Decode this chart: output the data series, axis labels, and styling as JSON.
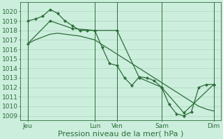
{
  "bg_color": "#cceedd",
  "grid_color": "#aaccbb",
  "line_color": "#2d6e3a",
  "marker_color": "#2d6e3a",
  "xlabel": "Pression niveau de la mer( hPa )",
  "xlabel_fontsize": 8,
  "tick_fontsize": 6.5,
  "ylim": [
    1008.5,
    1021.0
  ],
  "yticks": [
    1009,
    1010,
    1011,
    1012,
    1013,
    1014,
    1015,
    1016,
    1017,
    1018,
    1019,
    1020
  ],
  "xlim": [
    0,
    27
  ],
  "xtick_labels": [
    "Jeu",
    "Lun",
    "Ven",
    "Sam",
    "Dim"
  ],
  "xtick_positions": [
    1,
    10,
    13,
    19,
    26
  ],
  "vline_positions": [
    1,
    10,
    13,
    19,
    26
  ],
  "series1_x": [
    1,
    2,
    3,
    4,
    5,
    6,
    7,
    8,
    9,
    10,
    11,
    12,
    13,
    14,
    15,
    16,
    17,
    18,
    19,
    20,
    21,
    22,
    23,
    24,
    25,
    26
  ],
  "series1_y": [
    1019.0,
    1019.2,
    1019.5,
    1020.2,
    1019.8,
    1019.0,
    1018.5,
    1018.0,
    1018.0,
    1018.0,
    1016.2,
    1014.5,
    1014.3,
    1013.0,
    1012.2,
    1013.1,
    1013.0,
    1012.7,
    1012.0,
    1010.2,
    1009.2,
    1009.0,
    1009.4,
    1012.0,
    1012.3,
    1012.3
  ],
  "series2_x": [
    1,
    2,
    3,
    4,
    5,
    6,
    7,
    8,
    9,
    10,
    11,
    12,
    13,
    14,
    15,
    16,
    17,
    18,
    19,
    20,
    21,
    22,
    23,
    24,
    25,
    26
  ],
  "series2_y": [
    1016.6,
    1017.0,
    1017.3,
    1017.6,
    1017.7,
    1017.6,
    1017.5,
    1017.4,
    1017.2,
    1017.0,
    1016.5,
    1016.0,
    1015.5,
    1015.0,
    1014.5,
    1014.0,
    1013.5,
    1013.0,
    1012.5,
    1012.0,
    1011.5,
    1011.0,
    1010.5,
    1010.0,
    1009.7,
    1009.5
  ],
  "series3_x": [
    1,
    4,
    7,
    10,
    13,
    16,
    19,
    22,
    26
  ],
  "series3_y": [
    1016.6,
    1019.0,
    1018.2,
    1018.0,
    1018.0,
    1013.0,
    1012.0,
    1009.3,
    1012.3
  ]
}
